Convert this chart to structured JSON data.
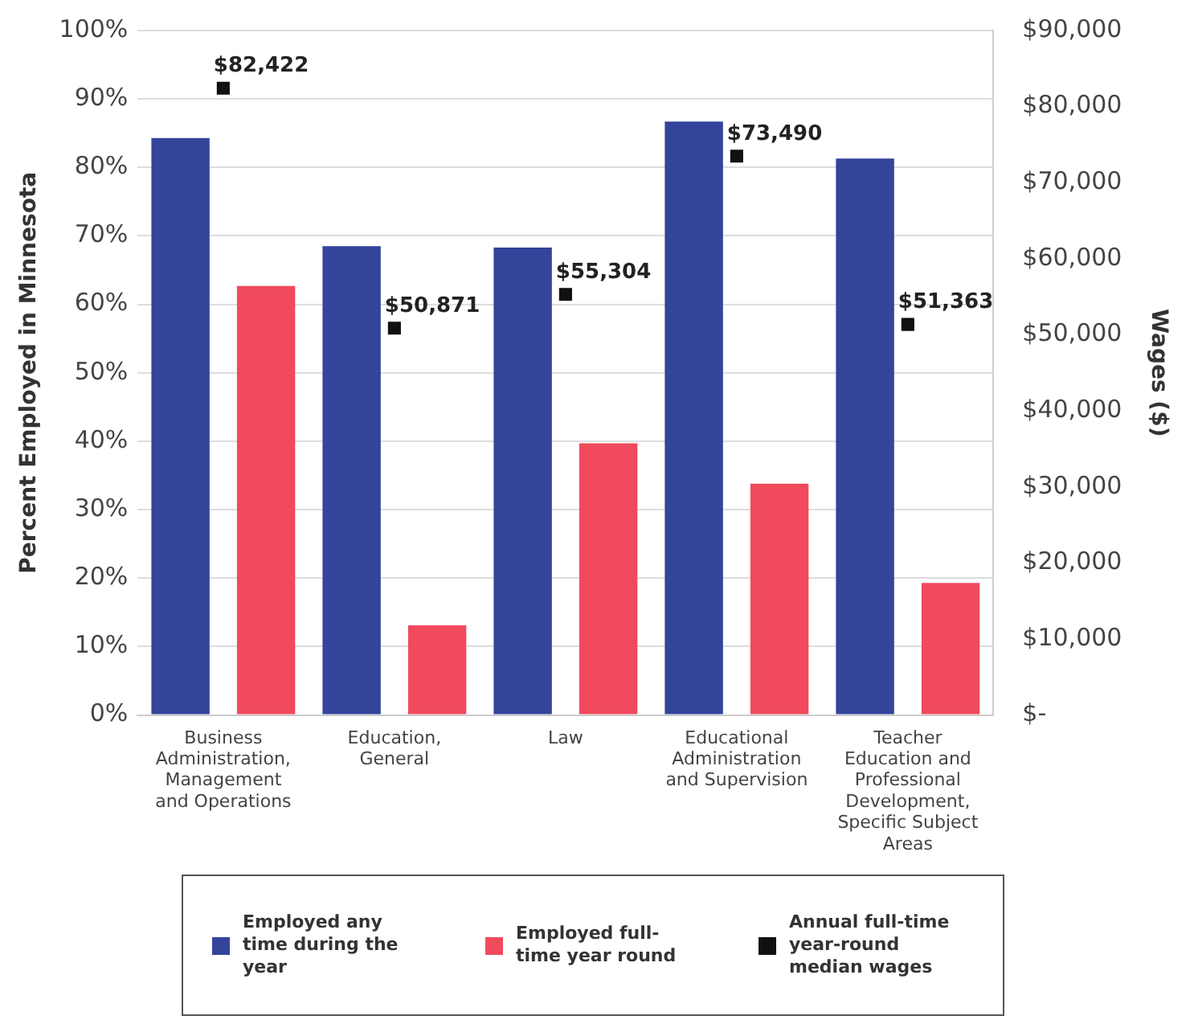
{
  "chart_data": {
    "type": "bar",
    "categories": [
      "Business Administration, Management and Operations",
      "Education, General",
      "Law",
      "Educational Administration and Supervision",
      "Teacher Education and Professional Development, Specific Subject Areas"
    ],
    "series": [
      {
        "name": "Employed any time during the year",
        "color": "#33449a",
        "values": [
          84.3,
          68.5,
          68.3,
          86.7,
          81.3
        ]
      },
      {
        "name": "Employed full-time year round",
        "color": "#f04a5c",
        "values": [
          62.7,
          13.1,
          39.7,
          33.8,
          19.3
        ]
      },
      {
        "name": "Annual full-time year-round median wages",
        "type": "scatter",
        "axis": "y2",
        "color": "#111111",
        "marker": "square",
        "values": [
          82422,
          50871,
          55304,
          73490,
          51363
        ],
        "value_labels": [
          "$82,422",
          "$50,871",
          "$55,304",
          "$73,490",
          "$51,363"
        ]
      }
    ],
    "ylabel": "Percent Employed in Minnesota",
    "y2label": "Wages ($)",
    "ylim": [
      0,
      100
    ],
    "yticks": [
      {
        "value": 0,
        "label": "0%"
      },
      {
        "value": 10,
        "label": "10%"
      },
      {
        "value": 20,
        "label": "20%"
      },
      {
        "value": 30,
        "label": "30%"
      },
      {
        "value": 40,
        "label": "40%"
      },
      {
        "value": 50,
        "label": "50%"
      },
      {
        "value": 60,
        "label": "60%"
      },
      {
        "value": 70,
        "label": "70%"
      },
      {
        "value": 80,
        "label": "80%"
      },
      {
        "value": 90,
        "label": "90%"
      },
      {
        "value": 100,
        "label": "100%"
      }
    ],
    "y2lim": [
      0,
      90000
    ],
    "y2ticks": [
      {
        "value": 0,
        "label": "$-"
      },
      {
        "value": 10000,
        "label": "$10,000"
      },
      {
        "value": 20000,
        "label": "$20,000"
      },
      {
        "value": 30000,
        "label": "$30,000"
      },
      {
        "value": 40000,
        "label": "$40,000"
      },
      {
        "value": 50000,
        "label": "$50,000"
      },
      {
        "value": 60000,
        "label": "$60,000"
      },
      {
        "value": 70000,
        "label": "$70,000"
      },
      {
        "value": 80000,
        "label": "$80,000"
      },
      {
        "value": 90000,
        "label": "$90,000"
      }
    ],
    "grid": "y",
    "legend": "bottom"
  }
}
